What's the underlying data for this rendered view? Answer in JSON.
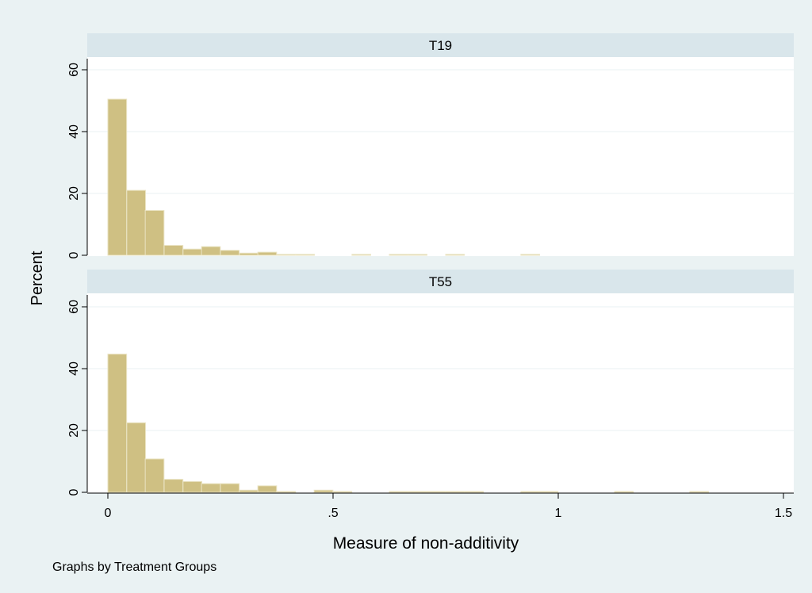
{
  "colors": {
    "outer_background": "#EAF2F3",
    "plot_background": "#FFFFFF",
    "strip_background": "#D9E6EB",
    "bar_fill": "#CFC083",
    "bar_edge": "#EAE4C4",
    "grid": "#EAF2F3",
    "axis": "#000000"
  },
  "note": "Graphs by Treatment Groups",
  "chart_data": {
    "type": "bar",
    "chart_kind": "histogram",
    "xlabel": "Measure of non-additivity",
    "ylabel": "Percent",
    "xlim": [
      -0.05,
      1.52
    ],
    "ylim": [
      0,
      63
    ],
    "bin_width": 0.04167,
    "x_ticks": [
      {
        "value": 0,
        "label": "0"
      },
      {
        "value": 0.5,
        "label": ".5"
      },
      {
        "value": 1,
        "label": "1"
      },
      {
        "value": 1.5,
        "label": "1.5"
      }
    ],
    "y_ticks": [
      {
        "value": 0,
        "label": "0"
      },
      {
        "value": 20,
        "label": "20"
      },
      {
        "value": 40,
        "label": "40"
      },
      {
        "value": 60,
        "label": "60"
      }
    ],
    "grid": true,
    "panels": [
      {
        "name": "T19",
        "bins": [
          {
            "x": 0.0,
            "pct": 50.5
          },
          {
            "x": 0.042,
            "pct": 21.0
          },
          {
            "x": 0.083,
            "pct": 14.5
          },
          {
            "x": 0.125,
            "pct": 3.2
          },
          {
            "x": 0.167,
            "pct": 2.0
          },
          {
            "x": 0.208,
            "pct": 2.8
          },
          {
            "x": 0.25,
            "pct": 1.6
          },
          {
            "x": 0.292,
            "pct": 0.7
          },
          {
            "x": 0.333,
            "pct": 1.0
          },
          {
            "x": 0.375,
            "pct": 0.3
          },
          {
            "x": 0.417,
            "pct": 0.3
          },
          {
            "x": 0.542,
            "pct": 0.3
          },
          {
            "x": 0.625,
            "pct": 0.3
          },
          {
            "x": 0.667,
            "pct": 0.3
          },
          {
            "x": 0.75,
            "pct": 0.3
          },
          {
            "x": 0.917,
            "pct": 0.3
          }
        ]
      },
      {
        "name": "T55",
        "bins": [
          {
            "x": 0.0,
            "pct": 44.7
          },
          {
            "x": 0.042,
            "pct": 22.5
          },
          {
            "x": 0.083,
            "pct": 10.8
          },
          {
            "x": 0.125,
            "pct": 4.2
          },
          {
            "x": 0.167,
            "pct": 3.5
          },
          {
            "x": 0.208,
            "pct": 2.8
          },
          {
            "x": 0.25,
            "pct": 2.8
          },
          {
            "x": 0.292,
            "pct": 0.7
          },
          {
            "x": 0.333,
            "pct": 2.1
          },
          {
            "x": 0.375,
            "pct": 0.3
          },
          {
            "x": 0.458,
            "pct": 0.7
          },
          {
            "x": 0.5,
            "pct": 0.3
          },
          {
            "x": 0.625,
            "pct": 0.3
          },
          {
            "x": 0.667,
            "pct": 0.3
          },
          {
            "x": 0.708,
            "pct": 0.3
          },
          {
            "x": 0.75,
            "pct": 0.3
          },
          {
            "x": 0.792,
            "pct": 0.3
          },
          {
            "x": 0.917,
            "pct": 0.3
          },
          {
            "x": 0.958,
            "pct": 0.3
          },
          {
            "x": 1.125,
            "pct": 0.3
          },
          {
            "x": 1.292,
            "pct": 0.3
          }
        ]
      }
    ]
  }
}
